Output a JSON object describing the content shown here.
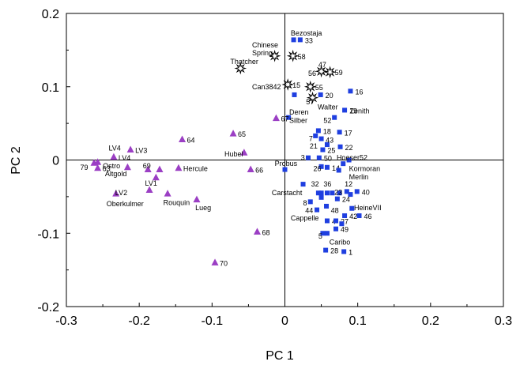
{
  "chart_data": {
    "type": "scatter",
    "title": "",
    "xlabel": "PC 1",
    "ylabel": "PC 2",
    "xlim": [
      -0.3,
      0.3
    ],
    "ylim": [
      -0.2,
      0.2
    ],
    "xticks": [
      -0.3,
      -0.2,
      -0.1,
      0,
      0.1,
      0.2,
      0.3
    ],
    "xtick_labels": [
      "-0.3",
      "-0.2",
      "-0.1",
      "0",
      "0.1",
      "0.2",
      "0.3"
    ],
    "yticks": [
      -0.2,
      -0.1,
      0,
      0.1,
      0.2
    ],
    "ytick_labels": [
      "-0.2",
      "-0.1",
      "0",
      "0.1",
      "0.2"
    ],
    "grid": false,
    "reference_lines": [
      "x=0",
      "y=0"
    ],
    "colors": {
      "square": "#1f3fe0",
      "triangle": "#9b3fc4",
      "star": "#ffffff"
    },
    "series": [
      {
        "marker": "square",
        "points": [
          {
            "x": 0.012,
            "y": 0.164,
            "label": ""
          },
          {
            "x": 0.021,
            "y": 0.164,
            "label": "33"
          },
          {
            "x": 0.09,
            "y": 0.094,
            "label": "16"
          },
          {
            "x": 0.013,
            "y": 0.089,
            "label": ""
          },
          {
            "x": 0.049,
            "y": 0.089,
            "label": "20"
          },
          {
            "x": 0.082,
            "y": 0.068,
            "label": "19"
          },
          {
            "x": 0.005,
            "y": 0.058,
            "label": ""
          },
          {
            "x": 0.068,
            "y": 0.058,
            "label": ""
          },
          {
            "x": 0.046,
            "y": 0.04,
            "label": "18"
          },
          {
            "x": 0.075,
            "y": 0.038,
            "label": "17"
          },
          {
            "x": 0.042,
            "y": 0.033,
            "label": ""
          },
          {
            "x": 0.05,
            "y": 0.029,
            "label": ""
          },
          {
            "x": 0.058,
            "y": 0.021,
            "label": ""
          },
          {
            "x": 0.076,
            "y": 0.018,
            "label": "22"
          },
          {
            "x": 0.052,
            "y": 0.014,
            "label": "25"
          },
          {
            "x": 0.032,
            "y": 0.003,
            "label": ""
          },
          {
            "x": 0.047,
            "y": 0.003,
            "label": "50"
          },
          {
            "x": 0.088,
            "y": 0.0,
            "label": ""
          },
          {
            "x": 0.08,
            "y": -0.005,
            "label": ""
          },
          {
            "x": 0.05,
            "y": -0.009,
            "label": ""
          },
          {
            "x": 0.058,
            "y": -0.01,
            "label": "14"
          },
          {
            "x": 0.074,
            "y": -0.014,
            "label": ""
          },
          {
            "x": 0.0,
            "y": -0.013,
            "label": ""
          },
          {
            "x": 0.025,
            "y": -0.033,
            "label": ""
          },
          {
            "x": 0.046,
            "y": -0.045,
            "label": ""
          },
          {
            "x": 0.05,
            "y": -0.045,
            "label": ""
          },
          {
            "x": 0.05,
            "y": -0.051,
            "label": ""
          },
          {
            "x": 0.058,
            "y": -0.045,
            "label": ""
          },
          {
            "x": 0.065,
            "y": -0.045,
            "label": ""
          },
          {
            "x": 0.075,
            "y": -0.045,
            "label": ""
          },
          {
            "x": 0.085,
            "y": -0.043,
            "label": ""
          },
          {
            "x": 0.09,
            "y": -0.047,
            "label": ""
          },
          {
            "x": 0.099,
            "y": -0.043,
            "label": "40"
          },
          {
            "x": 0.035,
            "y": -0.057,
            "label": ""
          },
          {
            "x": 0.072,
            "y": -0.053,
            "label": "24"
          },
          {
            "x": 0.044,
            "y": -0.068,
            "label": ""
          },
          {
            "x": 0.057,
            "y": -0.063,
            "label": ""
          },
          {
            "x": 0.092,
            "y": -0.066,
            "label": ""
          },
          {
            "x": 0.082,
            "y": -0.076,
            "label": "42"
          },
          {
            "x": 0.102,
            "y": -0.076,
            "label": "46"
          },
          {
            "x": 0.058,
            "y": -0.083,
            "label": "4"
          },
          {
            "x": 0.07,
            "y": -0.083,
            "label": "27"
          },
          {
            "x": 0.078,
            "y": -0.087,
            "label": ""
          },
          {
            "x": 0.07,
            "y": -0.094,
            "label": "49"
          },
          {
            "x": 0.052,
            "y": -0.1,
            "label": ""
          },
          {
            "x": 0.058,
            "y": -0.1,
            "label": ""
          },
          {
            "x": 0.056,
            "y": -0.123,
            "label": "28"
          },
          {
            "x": 0.081,
            "y": -0.125,
            "label": "1"
          }
        ]
      },
      {
        "marker": "triangle",
        "points": [
          {
            "x": -0.262,
            "y": -0.004,
            "label": ""
          },
          {
            "x": -0.257,
            "y": -0.003,
            "label": ""
          },
          {
            "x": -0.257,
            "y": -0.011,
            "label": "63"
          },
          {
            "x": -0.235,
            "y": 0.004,
            "label": "LV4"
          },
          {
            "x": -0.212,
            "y": 0.014,
            "label": "LV3"
          },
          {
            "x": -0.216,
            "y": -0.01,
            "label": ""
          },
          {
            "x": -0.188,
            "y": -0.013,
            "label": ""
          },
          {
            "x": -0.172,
            "y": -0.013,
            "label": ""
          },
          {
            "x": -0.177,
            "y": -0.024,
            "label": ""
          },
          {
            "x": -0.232,
            "y": -0.046,
            "label": ""
          },
          {
            "x": -0.186,
            "y": -0.041,
            "label": ""
          },
          {
            "x": -0.161,
            "y": -0.046,
            "label": ""
          },
          {
            "x": -0.121,
            "y": -0.054,
            "label": ""
          },
          {
            "x": -0.146,
            "y": -0.011,
            "label": "Hercule"
          },
          {
            "x": -0.141,
            "y": 0.028,
            "label": "64"
          },
          {
            "x": -0.071,
            "y": 0.036,
            "label": "65"
          },
          {
            "x": -0.056,
            "y": 0.01,
            "label": ""
          },
          {
            "x": -0.047,
            "y": -0.013,
            "label": "66"
          },
          {
            "x": -0.012,
            "y": 0.057,
            "label": "67"
          },
          {
            "x": -0.038,
            "y": -0.098,
            "label": "68"
          },
          {
            "x": -0.096,
            "y": -0.14,
            "label": "70"
          }
        ]
      },
      {
        "marker": "star",
        "points": [
          {
            "x": -0.014,
            "y": 0.142,
            "label": ""
          },
          {
            "x": 0.011,
            "y": 0.142,
            "label": "58"
          },
          {
            "x": -0.061,
            "y": 0.125,
            "label": ""
          },
          {
            "x": 0.05,
            "y": 0.121,
            "label": ""
          },
          {
            "x": 0.062,
            "y": 0.12,
            "label": "59"
          },
          {
            "x": 0.004,
            "y": 0.103,
            "label": "15"
          },
          {
            "x": 0.035,
            "y": 0.1,
            "label": "55"
          },
          {
            "x": 0.038,
            "y": 0.085,
            "label": ""
          }
        ]
      }
    ],
    "annotations": [
      {
        "text": "Bezostaja",
        "x": 0.008,
        "y": 0.173
      },
      {
        "text": "Chinese",
        "x": -0.045,
        "y": 0.157
      },
      {
        "text": "Spring",
        "x": -0.045,
        "y": 0.146
      },
      {
        "text": "Thatcher",
        "x": -0.075,
        "y": 0.134
      },
      {
        "text": "47",
        "x": 0.046,
        "y": 0.13
      },
      {
        "text": "56",
        "x": 0.032,
        "y": 0.118
      },
      {
        "text": "Can3842",
        "x": -0.045,
        "y": 0.1
      },
      {
        "text": "57",
        "x": 0.029,
        "y": 0.079
      },
      {
        "text": "Walter",
        "x": 0.045,
        "y": 0.072
      },
      {
        "text": "Zenith",
        "x": 0.089,
        "y": 0.067
      },
      {
        "text": "Deren",
        "x": 0.006,
        "y": 0.065
      },
      {
        "text": "Silber",
        "x": 0.006,
        "y": 0.054
      },
      {
        "text": "52",
        "x": 0.053,
        "y": 0.054
      },
      {
        "text": "7",
        "x": 0.033,
        "y": 0.029
      },
      {
        "text": "43",
        "x": 0.056,
        "y": 0.027
      },
      {
        "text": "21",
        "x": 0.034,
        "y": 0.019
      },
      {
        "text": "Hubel",
        "x": -0.083,
        "y": 0.008
      },
      {
        "text": "3",
        "x": 0.022,
        "y": 0.003
      },
      {
        "text": "Hoeser52",
        "x": 0.071,
        "y": 0.003
      },
      {
        "text": "Probus",
        "x": -0.014,
        "y": -0.005
      },
      {
        "text": "26",
        "x": 0.039,
        "y": -0.012
      },
      {
        "text": "Kormoran",
        "x": 0.088,
        "y": -0.012
      },
      {
        "text": "Merlin",
        "x": 0.088,
        "y": -0.023
      },
      {
        "text": "LV4",
        "x": -0.242,
        "y": 0.016
      },
      {
        "text": "79",
        "x": -0.281,
        "y": -0.01
      },
      {
        "text": "Ostro",
        "x": -0.25,
        "y": -0.008
      },
      {
        "text": "69",
        "x": -0.195,
        "y": -0.008
      },
      {
        "text": "Altgold",
        "x": -0.247,
        "y": -0.019
      },
      {
        "text": "LV1",
        "x": -0.192,
        "y": -0.032
      },
      {
        "text": "LV2",
        "x": -0.233,
        "y": -0.045
      },
      {
        "text": "Rouquin",
        "x": -0.167,
        "y": -0.058
      },
      {
        "text": "Lueg",
        "x": -0.123,
        "y": -0.065
      },
      {
        "text": "Oberkulmer",
        "x": -0.245,
        "y": -0.06
      },
      {
        "text": "Carstacht",
        "x": -0.018,
        "y": -0.045
      },
      {
        "text": "32",
        "x": 0.036,
        "y": -0.033
      },
      {
        "text": "36",
        "x": 0.053,
        "y": -0.033
      },
      {
        "text": "12",
        "x": 0.082,
        "y": -0.033
      },
      {
        "text": "23",
        "x": 0.068,
        "y": -0.044
      },
      {
        "text": "8",
        "x": 0.025,
        "y": -0.059
      },
      {
        "text": "44",
        "x": 0.028,
        "y": -0.069
      },
      {
        "text": "48",
        "x": 0.063,
        "y": -0.069
      },
      {
        "text": "HeineVII",
        "x": 0.095,
        "y": -0.065
      },
      {
        "text": "Cappelle",
        "x": 0.008,
        "y": -0.079
      },
      {
        "text": "5",
        "x": 0.046,
        "y": -0.104
      },
      {
        "text": "Caribo",
        "x": 0.061,
        "y": -0.112
      }
    ]
  }
}
